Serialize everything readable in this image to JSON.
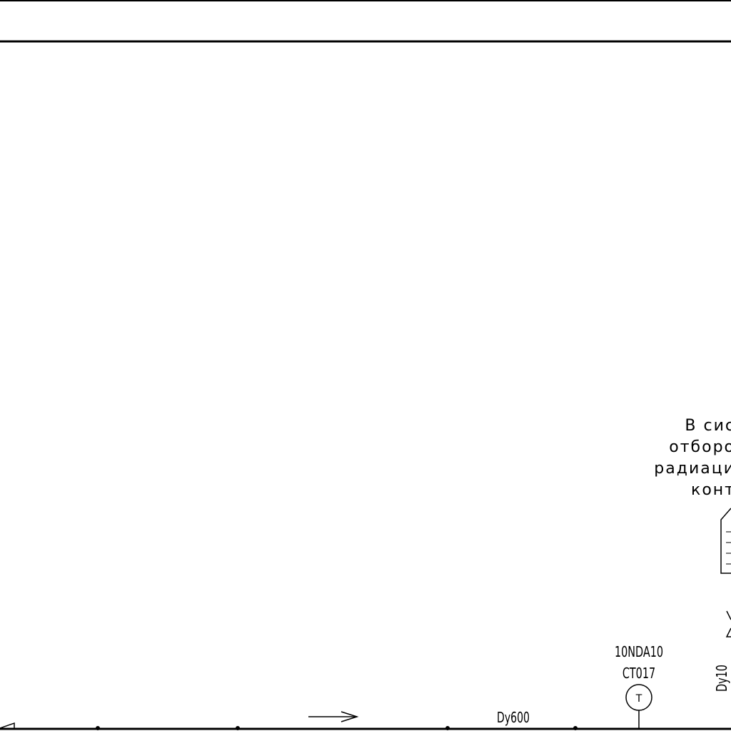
{
  "note": {
    "line1": "В сис",
    "line2": "отборо",
    "line3": "радиаци",
    "line4": "конт"
  },
  "instrument": {
    "tag_line1": "10NDA10",
    "tag_line2": "CT017",
    "symbol": "T"
  },
  "pipe": {
    "main_size": "Dy600",
    "branch_size": "Dy10"
  },
  "icons": {
    "flow": "flow-arrow-icon",
    "valve": "valve-icon",
    "sensor": "temperature-sensor-icon"
  }
}
